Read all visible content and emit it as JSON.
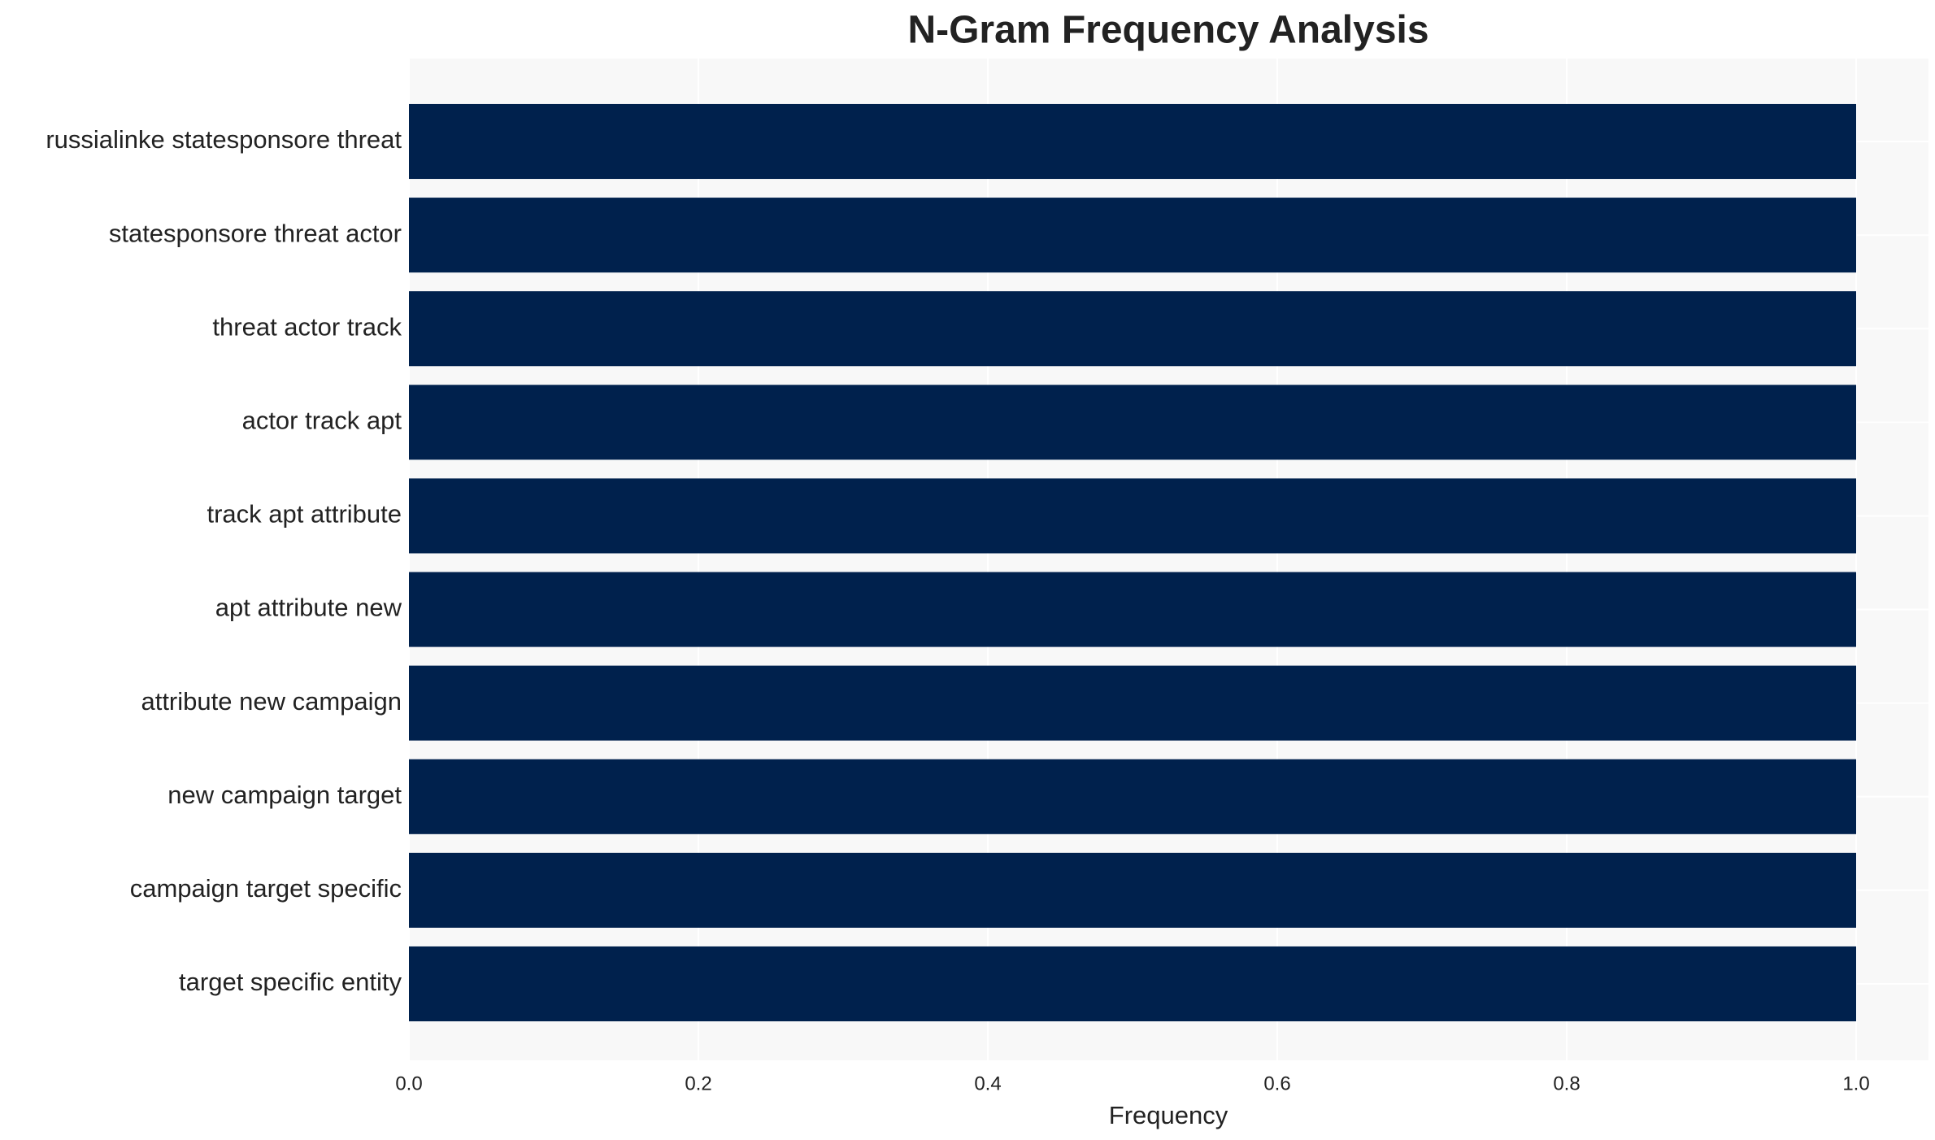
{
  "chart_data": {
    "type": "barh",
    "title": "N-Gram Frequency Analysis",
    "xlabel": "Frequency",
    "categories": [
      "russialinke statesponsore threat",
      "statesponsore threat actor",
      "threat actor track",
      "actor track apt",
      "track apt attribute",
      "apt attribute new",
      "attribute new campaign",
      "new campaign target",
      "campaign target specific",
      "target specific entity"
    ],
    "values": [
      1,
      1,
      1,
      1,
      1,
      1,
      1,
      1,
      1,
      1
    ],
    "color": "#00214d",
    "xlim": [
      0,
      1.05
    ],
    "xticks": [
      {
        "value": 0,
        "label": "0.0"
      },
      {
        "value": 0.2,
        "label": "0.2"
      },
      {
        "value": 0.4,
        "label": "0.4"
      },
      {
        "value": 0.6,
        "label": "0.6"
      },
      {
        "value": 0.8,
        "label": "0.8"
      },
      {
        "value": 1,
        "label": "1.0"
      }
    ],
    "grid": true
  }
}
